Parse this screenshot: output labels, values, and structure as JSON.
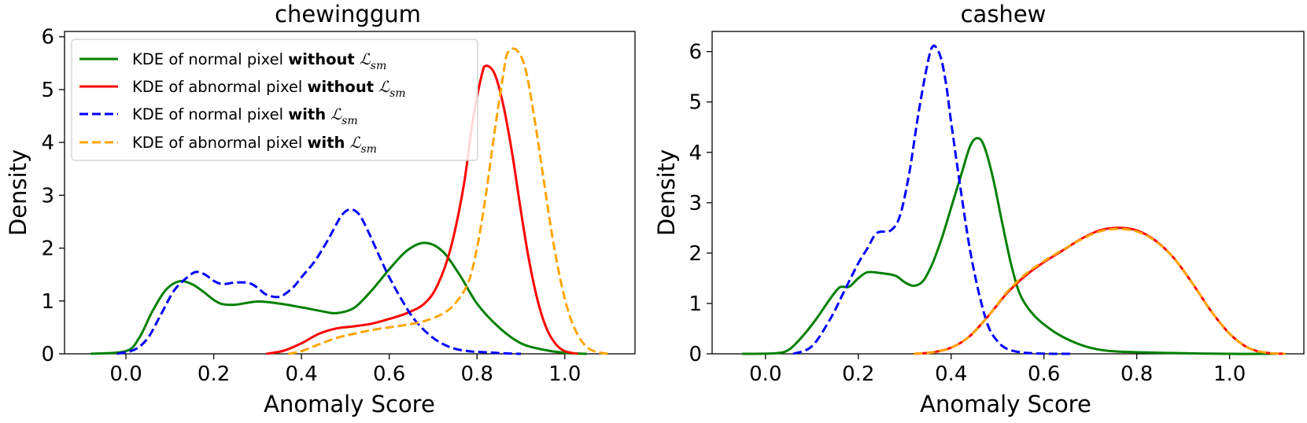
{
  "chart_data": [
    {
      "type": "line",
      "title": "chewinggum",
      "xlabel": "Anomaly Score",
      "ylabel": "Density",
      "xlim": [
        -0.14,
        1.16
      ],
      "ylim": [
        0,
        6.1
      ],
      "xticks": [
        0.0,
        0.2,
        0.4,
        0.6,
        0.8,
        1.0
      ],
      "xtick_labels": [
        "0.0",
        "0.2",
        "0.4",
        "0.6",
        "0.8",
        "1.0"
      ],
      "yticks": [
        0,
        1,
        2,
        3,
        4,
        5,
        6
      ],
      "ytick_labels": [
        "0",
        "1",
        "2",
        "3",
        "4",
        "5",
        "6"
      ],
      "legend": {
        "position": "upper-left",
        "entries": [
          {
            "prefix": "KDE of normal pixel ",
            "bold": "without",
            "math": "ℒ",
            "sub": "sm",
            "color": "#008000",
            "style": "solid"
          },
          {
            "prefix": "KDE of abnormal pixel ",
            "bold": "without",
            "math": "ℒ",
            "sub": "sm",
            "color": "#ff0000",
            "style": "solid"
          },
          {
            "prefix": "KDE of normal pixel ",
            "bold": "with",
            "math": "ℒ",
            "sub": "sm",
            "color": "#0000ff",
            "style": "dashed"
          },
          {
            "prefix": "KDE of abnormal pixel ",
            "bold": "with",
            "math": "ℒ",
            "sub": "sm",
            "color": "#ffa500",
            "style": "dashed"
          }
        ]
      },
      "series": [
        {
          "name": "KDE of normal pixel without L_sm",
          "color": "#008000",
          "style": "solid",
          "x": [
            -0.08,
            0.0,
            0.03,
            0.06,
            0.09,
            0.12,
            0.15,
            0.18,
            0.2,
            0.22,
            0.25,
            0.3,
            0.35,
            0.4,
            0.45,
            0.48,
            0.52,
            0.56,
            0.6,
            0.64,
            0.68,
            0.72,
            0.76,
            0.8,
            0.85,
            0.9,
            0.95,
            1.0,
            1.05
          ],
          "y": [
            0,
            0.05,
            0.3,
            0.8,
            1.2,
            1.37,
            1.32,
            1.15,
            1.02,
            0.94,
            0.93,
            0.99,
            0.95,
            0.88,
            0.8,
            0.77,
            0.87,
            1.2,
            1.6,
            1.95,
            2.1,
            1.95,
            1.5,
            0.95,
            0.5,
            0.2,
            0.08,
            0.02,
            0
          ]
        },
        {
          "name": "KDE of abnormal pixel without L_sm",
          "color": "#ff0000",
          "style": "solid",
          "x": [
            0.32,
            0.36,
            0.4,
            0.44,
            0.48,
            0.52,
            0.56,
            0.6,
            0.64,
            0.68,
            0.71,
            0.74,
            0.77,
            0.79,
            0.81,
            0.82,
            0.84,
            0.86,
            0.88,
            0.9,
            0.92,
            0.94,
            0.96,
            0.98,
            1.0,
            1.03
          ],
          "y": [
            0,
            0.06,
            0.2,
            0.38,
            0.48,
            0.52,
            0.57,
            0.66,
            0.77,
            0.95,
            1.3,
            2.0,
            3.2,
            4.4,
            5.25,
            5.45,
            5.3,
            4.7,
            3.8,
            2.7,
            1.7,
            0.95,
            0.45,
            0.18,
            0.05,
            0
          ]
        },
        {
          "name": "KDE of normal pixel with L_sm",
          "color": "#0000ff",
          "style": "dashed",
          "x": [
            -0.02,
            0.02,
            0.05,
            0.08,
            0.11,
            0.14,
            0.16,
            0.18,
            0.2,
            0.22,
            0.25,
            0.28,
            0.3,
            0.32,
            0.35,
            0.38,
            0.4,
            0.43,
            0.46,
            0.49,
            0.51,
            0.53,
            0.55,
            0.58,
            0.6,
            0.63,
            0.66,
            0.7,
            0.74,
            0.78,
            0.82,
            0.86,
            0.9
          ],
          "y": [
            0,
            0.08,
            0.3,
            0.75,
            1.2,
            1.45,
            1.55,
            1.5,
            1.38,
            1.32,
            1.35,
            1.34,
            1.25,
            1.12,
            1.08,
            1.25,
            1.45,
            1.75,
            2.15,
            2.6,
            2.73,
            2.65,
            2.35,
            1.8,
            1.45,
            1.0,
            0.62,
            0.3,
            0.12,
            0.05,
            0.03,
            0.01,
            0
          ]
        },
        {
          "name": "KDE of abnormal pixel with L_sm",
          "color": "#ffa500",
          "style": "dashed",
          "x": [
            0.37,
            0.4,
            0.44,
            0.48,
            0.52,
            0.56,
            0.6,
            0.64,
            0.68,
            0.72,
            0.75,
            0.78,
            0.8,
            0.82,
            0.84,
            0.86,
            0.87,
            0.89,
            0.91,
            0.93,
            0.95,
            0.97,
            0.99,
            1.01,
            1.03,
            1.05,
            1.07,
            1.1
          ],
          "y": [
            0,
            0.05,
            0.18,
            0.3,
            0.38,
            0.45,
            0.5,
            0.55,
            0.62,
            0.75,
            0.95,
            1.35,
            2.0,
            3.0,
            4.2,
            5.3,
            5.7,
            5.75,
            5.4,
            4.5,
            3.4,
            2.3,
            1.4,
            0.75,
            0.35,
            0.13,
            0.04,
            0
          ]
        }
      ]
    },
    {
      "type": "line",
      "title": "cashew",
      "xlabel": "Anomaly Score",
      "ylabel": "Density",
      "xlim": [
        -0.115,
        1.16
      ],
      "ylim": [
        0,
        6.4
      ],
      "xticks": [
        0.0,
        0.2,
        0.4,
        0.6,
        0.8,
        1.0
      ],
      "xtick_labels": [
        "0.0",
        "0.2",
        "0.4",
        "0.6",
        "0.8",
        "1.0"
      ],
      "yticks": [
        0,
        1,
        2,
        3,
        4,
        5,
        6
      ],
      "ytick_labels": [
        "0",
        "1",
        "2",
        "3",
        "4",
        "5",
        "6"
      ],
      "series": [
        {
          "name": "KDE of normal pixel without L_sm",
          "color": "#008000",
          "style": "solid",
          "x": [
            -0.05,
            0.02,
            0.05,
            0.08,
            0.11,
            0.14,
            0.16,
            0.18,
            0.2,
            0.22,
            0.25,
            0.28,
            0.3,
            0.32,
            0.34,
            0.36,
            0.38,
            0.4,
            0.42,
            0.44,
            0.455,
            0.47,
            0.49,
            0.51,
            0.53,
            0.55,
            0.58,
            0.62,
            0.66,
            0.7,
            0.75,
            0.85,
            1.0,
            1.1
          ],
          "y": [
            0,
            0.01,
            0.08,
            0.35,
            0.7,
            1.1,
            1.32,
            1.33,
            1.5,
            1.62,
            1.6,
            1.55,
            1.42,
            1.35,
            1.45,
            1.8,
            2.3,
            2.9,
            3.5,
            4.1,
            4.28,
            4.15,
            3.5,
            2.6,
            1.75,
            1.15,
            0.75,
            0.45,
            0.25,
            0.12,
            0.05,
            0.02,
            0,
            0
          ]
        },
        {
          "name": "KDE of abnormal pixel without L_sm",
          "color": "#ff0000",
          "style": "solid",
          "x": [
            0.32,
            0.36,
            0.4,
            0.44,
            0.48,
            0.52,
            0.56,
            0.6,
            0.64,
            0.68,
            0.72,
            0.76,
            0.8,
            0.84,
            0.88,
            0.92,
            0.96,
            1.0,
            1.04,
            1.08,
            1.12
          ],
          "y": [
            0,
            0.03,
            0.12,
            0.35,
            0.75,
            1.2,
            1.55,
            1.82,
            2.05,
            2.28,
            2.45,
            2.5,
            2.45,
            2.25,
            1.9,
            1.4,
            0.85,
            0.4,
            0.12,
            0.02,
            0
          ]
        },
        {
          "name": "KDE of normal pixel with L_sm",
          "color": "#0000ff",
          "style": "dashed",
          "x": [
            0.06,
            0.1,
            0.14,
            0.17,
            0.2,
            0.22,
            0.24,
            0.27,
            0.29,
            0.31,
            0.33,
            0.35,
            0.36,
            0.37,
            0.38,
            0.39,
            0.4,
            0.42,
            0.44,
            0.46,
            0.48,
            0.5,
            0.52,
            0.55,
            0.58,
            0.62,
            0.66
          ],
          "y": [
            0,
            0.15,
            0.7,
            1.25,
            1.8,
            2.1,
            2.4,
            2.45,
            2.75,
            3.6,
            4.8,
            5.8,
            6.1,
            6.05,
            5.8,
            5.3,
            4.6,
            3.3,
            2.1,
            1.2,
            0.55,
            0.25,
            0.1,
            0.03,
            0.01,
            0,
            0
          ]
        },
        {
          "name": "KDE of abnormal pixel with L_sm",
          "color": "#ffa500",
          "style": "dashed",
          "x": [
            0.32,
            0.36,
            0.4,
            0.44,
            0.48,
            0.52,
            0.56,
            0.6,
            0.64,
            0.68,
            0.72,
            0.76,
            0.8,
            0.84,
            0.88,
            0.92,
            0.96,
            1.0,
            1.04,
            1.08,
            1.12
          ],
          "y": [
            0,
            0.03,
            0.12,
            0.35,
            0.75,
            1.22,
            1.58,
            1.84,
            2.06,
            2.27,
            2.43,
            2.48,
            2.43,
            2.24,
            1.9,
            1.4,
            0.85,
            0.4,
            0.12,
            0.02,
            0
          ]
        }
      ]
    }
  ]
}
